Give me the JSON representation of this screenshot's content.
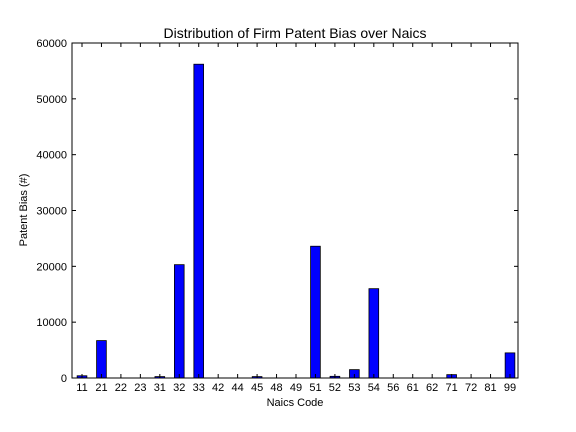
{
  "chart_data": {
    "type": "bar",
    "title": "Distribution of Firm Patent Bias over Naics",
    "xlabel": "Naics Code",
    "ylabel": "Patent Bias (#)",
    "ylim": [
      0,
      60000
    ],
    "yticks": [
      0,
      10000,
      20000,
      30000,
      40000,
      50000,
      60000
    ],
    "categories": [
      "11",
      "21",
      "22",
      "23",
      "31",
      "32",
      "33",
      "42",
      "44",
      "45",
      "48",
      "49",
      "51",
      "52",
      "53",
      "54",
      "56",
      "61",
      "62",
      "71",
      "72",
      "81",
      "99"
    ],
    "values": [
      400,
      6700,
      0,
      0,
      250,
      20300,
      56200,
      0,
      0,
      250,
      0,
      0,
      23600,
      300,
      1500,
      16000,
      0,
      0,
      0,
      600,
      0,
      0,
      4500
    ],
    "bar_color": "#0000ff",
    "grid": false
  }
}
